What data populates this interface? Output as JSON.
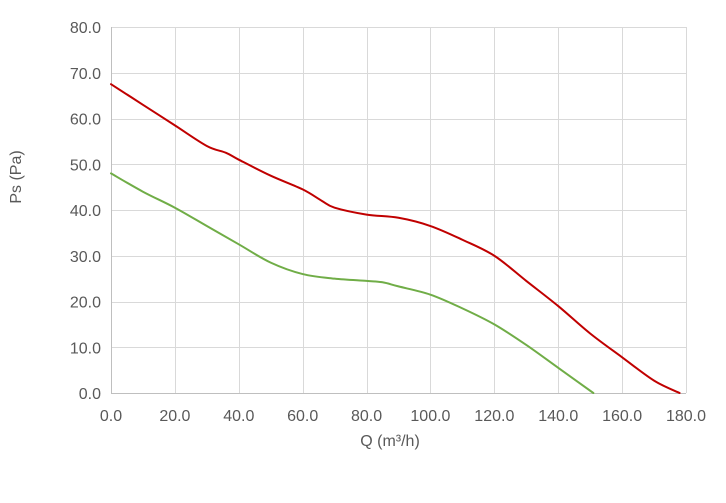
{
  "chart_data": {
    "type": "line",
    "title": "",
    "xlabel": "Q (m³/h)",
    "ylabel": "Ps (Pa)",
    "xlim": [
      0,
      180
    ],
    "ylim": [
      0,
      80
    ],
    "x_ticks": [
      0,
      20,
      40,
      60,
      80,
      100,
      120,
      140,
      160,
      180
    ],
    "y_ticks": [
      0,
      10,
      20,
      30,
      40,
      50,
      60,
      70,
      80
    ],
    "x_tick_labels": [
      "0.0",
      "20.0",
      "40.0",
      "60.0",
      "80.0",
      "100.0",
      "120.0",
      "140.0",
      "160.0",
      "180.0"
    ],
    "y_tick_labels": [
      "0.0",
      "10.0",
      "20.0",
      "30.0",
      "40.0",
      "50.0",
      "60.0",
      "70.0",
      "80.0"
    ],
    "grid": true,
    "legend": "none",
    "series": [
      {
        "color": "#c00000",
        "points": [
          [
            0,
            67.5
          ],
          [
            10,
            63
          ],
          [
            20,
            58.5
          ],
          [
            30,
            54
          ],
          [
            36,
            52.5
          ],
          [
            40,
            51
          ],
          [
            50,
            47.5
          ],
          [
            60,
            44.5
          ],
          [
            66,
            42
          ],
          [
            70,
            40.5
          ],
          [
            80,
            39
          ],
          [
            90,
            38.3
          ],
          [
            100,
            36.5
          ],
          [
            110,
            33.5
          ],
          [
            120,
            30
          ],
          [
            130,
            24.5
          ],
          [
            140,
            19
          ],
          [
            150,
            13
          ],
          [
            160,
            7.8
          ],
          [
            170,
            2.7
          ],
          [
            178,
            0
          ]
        ]
      },
      {
        "color": "#70ad47",
        "points": [
          [
            0,
            48
          ],
          [
            10,
            44
          ],
          [
            20,
            40.5
          ],
          [
            30,
            36.5
          ],
          [
            40,
            32.5
          ],
          [
            50,
            28.5
          ],
          [
            60,
            26
          ],
          [
            70,
            25
          ],
          [
            80,
            24.5
          ],
          [
            85,
            24.2
          ],
          [
            90,
            23.3
          ],
          [
            100,
            21.5
          ],
          [
            110,
            18.5
          ],
          [
            120,
            15
          ],
          [
            130,
            10.5
          ],
          [
            140,
            5.5
          ],
          [
            151,
            0
          ]
        ]
      }
    ]
  }
}
